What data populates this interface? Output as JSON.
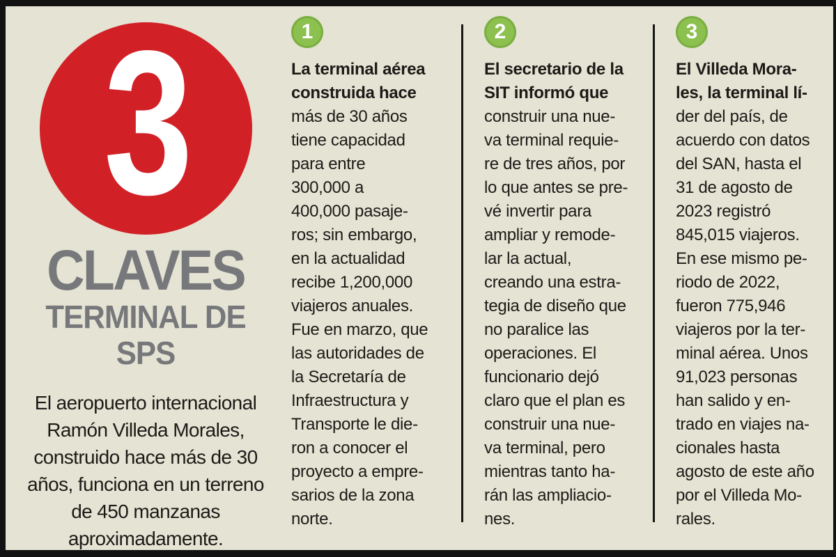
{
  "page": {
    "background_color": "#e5e3d3",
    "frame_color": "#121212",
    "accent_red": "#d22027",
    "accent_green": "#8cc04f",
    "title_gray": "#77787b"
  },
  "header": {
    "big_number": "3",
    "title": "CLAVES",
    "subtitle": "TERMINAL DE\nSPS",
    "intro": "El aeropuerto internacional\nRamón Villeda Morales,\nconstruido hace más de 30\naños, funciona en un terreno\nde 450 manzanas\naproximadamente."
  },
  "columns": [
    {
      "badge": "1",
      "lead": "La terminal aérea\nconstruida hace",
      "body": "\nmás de 30 años\ntiene capacidad\npara entre\n300,000 a\n400,000 pasaje-\nros; sin embargo,\nen la actualidad\nrecibe 1,200,000\nviajeros anuales.\nFue en marzo, que\nlas autoridades de\nla Secretaría de\nInfraestructura y\nTransporte le die-\nron a conocer el\nproyecto a empre-\nsarios de la zona\nnorte."
    },
    {
      "badge": "2",
      "lead": "El secretario de la\nSIT informó que",
      "body": "\nconstruir una nue-\nva terminal requie-\nre de tres años, por\nlo que antes se pre-\nvé invertir para\nampliar y remode-\nlar la actual,\ncreando una estra-\ntegia de diseño que\nno paralice las\noperaciones. El\nfuncionario dejó\nclaro que el plan es\nconstruir una nue-\nva terminal, pero\nmientras tanto ha-\nrán las ampliacio-\nnes."
    },
    {
      "badge": "3",
      "lead": "El Villeda Mora-\nles, la terminal lí-",
      "body": "\nder del país, de\nacuerdo con datos\ndel SAN, hasta el\n31 de agosto de\n2023 registró\n845,015 viajeros.\nEn ese mismo pe-\nriodo de 2022,\nfueron 775,946\nviajeros por la ter-\nminal aérea. Unos\n91,023 personas\nhan salido y en-\ntrado en viajes na-\ncionales hasta\nagosto de este año\npor el Villeda Mo-\nrales."
    }
  ]
}
